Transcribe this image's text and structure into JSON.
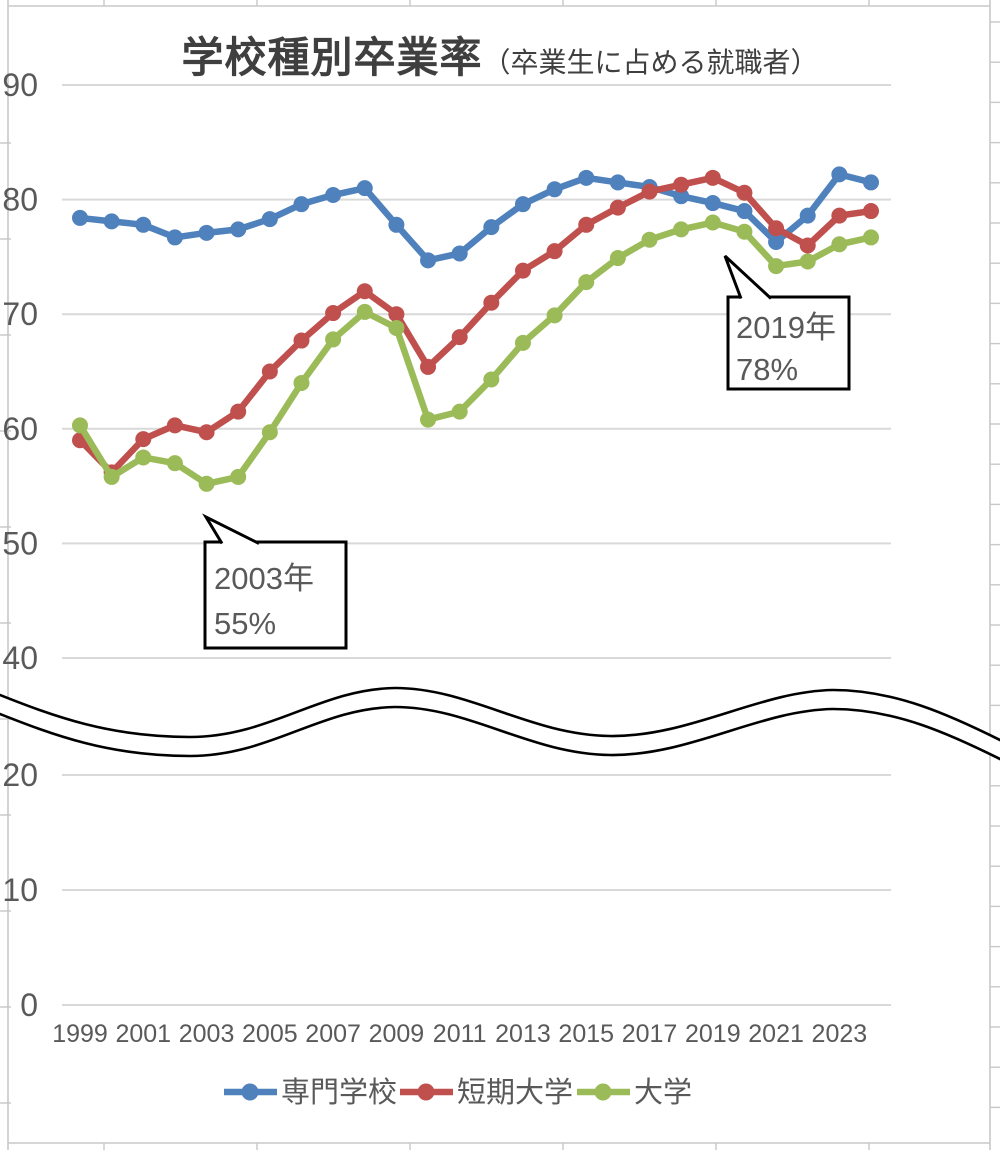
{
  "title": {
    "main": "学校種別卒業率",
    "sub": "（卒業生に占める就職者）"
  },
  "chart_data": {
    "type": "line",
    "x": [
      1999,
      2000,
      2001,
      2002,
      2003,
      2004,
      2005,
      2006,
      2007,
      2008,
      2009,
      2010,
      2011,
      2012,
      2013,
      2014,
      2015,
      2016,
      2017,
      2018,
      2019,
      2020,
      2021,
      2022,
      2023,
      2024
    ],
    "x_tick_labels": [
      "1999",
      "2001",
      "2003",
      "2005",
      "2007",
      "2009",
      "2011",
      "2013",
      "2015",
      "2017",
      "2019",
      "2021",
      "2023"
    ],
    "y_ticks": [
      90,
      80,
      70,
      60,
      50,
      40,
      20,
      10,
      0
    ],
    "axis_break": true,
    "grid": true,
    "legend_position": "bottom",
    "series": [
      {
        "name": "専門学校",
        "color": "#4F81BD",
        "values": [
          78.4,
          78.1,
          77.8,
          76.7,
          77.1,
          77.4,
          78.3,
          79.6,
          80.4,
          81.0,
          77.8,
          74.7,
          75.3,
          77.6,
          79.6,
          80.9,
          81.9,
          81.5,
          81.1,
          80.3,
          79.7,
          79.0,
          76.3,
          78.6,
          82.2,
          81.5
        ]
      },
      {
        "name": "短期大学",
        "color": "#C0504D",
        "values": [
          59.0,
          56.2,
          59.1,
          60.3,
          59.7,
          61.5,
          65.0,
          67.7,
          70.1,
          72.0,
          70.0,
          65.4,
          68.0,
          71.0,
          73.8,
          75.5,
          77.8,
          79.3,
          80.7,
          81.3,
          81.9,
          80.6,
          77.5,
          76.0,
          78.6,
          79.0
        ]
      },
      {
        "name": "大学",
        "color": "#9BBB59",
        "values": [
          60.3,
          55.8,
          57.5,
          57.0,
          55.2,
          55.8,
          59.7,
          64.0,
          67.8,
          70.2,
          68.8,
          60.8,
          61.5,
          64.3,
          67.5,
          69.9,
          72.8,
          74.9,
          76.5,
          77.4,
          78.0,
          77.2,
          74.2,
          74.6,
          76.1,
          76.7
        ]
      }
    ],
    "annotations": [
      {
        "line1": "2003年",
        "line2": "55%",
        "target_series": "大学",
        "target_year": 2003,
        "box": {
          "x": 205,
          "y": 542,
          "w": 141,
          "h": 106
        },
        "tail": {
          "tipx": 206,
          "tipy": 517,
          "b1x": 222,
          "b2x": 259
        },
        "text_x": 214,
        "baseline1": 589,
        "baseline2": 634
      },
      {
        "line1": "2019年",
        "line2": "78%",
        "target_series": "大学",
        "target_year": 2019,
        "box": {
          "x": 728,
          "y": 297,
          "w": 121,
          "h": 92
        },
        "tail": {
          "tipx": 725,
          "tipy": 256,
          "b1x": 741,
          "b2x": 771
        },
        "text_x": 736,
        "baseline1": 338,
        "baseline2": 380
      }
    ],
    "colors": {
      "grid": "#d9d9d9",
      "axis_text": "#595959",
      "annotation_text": "#00B050",
      "sheet_border": "#c8c8c8",
      "title_text": "#3f3f3f",
      "break_line": "#000000"
    }
  }
}
